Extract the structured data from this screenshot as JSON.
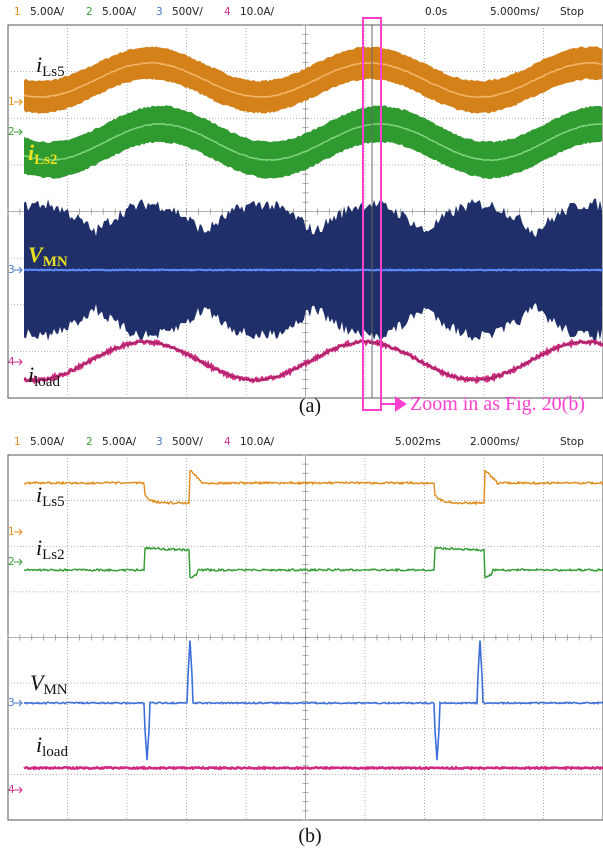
{
  "panels": [
    {
      "header": {
        "channels": [
          {
            "num": "1",
            "scale": "5.00A/"
          },
          {
            "num": "2",
            "scale": "5.00A/"
          },
          {
            "num": "3",
            "scale": "500V/"
          },
          {
            "num": "4",
            "scale": "10.0A/"
          }
        ],
        "delay": "0.0s",
        "timebase": "5.000ms/",
        "status": "Stop"
      },
      "markers": [
        "1",
        "2",
        "3",
        "4"
      ],
      "traces": [
        {
          "main": "i",
          "sub": "Ls5"
        },
        {
          "main": "i",
          "sub": "Ls2"
        },
        {
          "main": "V",
          "sub": "MN"
        },
        {
          "main": "i",
          "sub": "load"
        }
      ],
      "caption": "(a)"
    },
    {
      "header": {
        "channels": [
          {
            "num": "1",
            "scale": "5.00A/"
          },
          {
            "num": "2",
            "scale": "5.00A/"
          },
          {
            "num": "3",
            "scale": "500V/"
          },
          {
            "num": "4",
            "scale": "10.0A/"
          }
        ],
        "delay": "5.002ms",
        "timebase": "2.000ms/",
        "status": "Stop"
      },
      "markers": [
        "1",
        "2",
        "3",
        "4"
      ],
      "traces": [
        {
          "main": "i",
          "sub": "Ls5"
        },
        {
          "main": "i",
          "sub": "Ls2"
        },
        {
          "main": "V",
          "sub": "MN"
        },
        {
          "main": "i",
          "sub": "load"
        }
      ],
      "caption": "(b)"
    }
  ],
  "annotation": "Zoom in as Fig. 20(b)"
}
